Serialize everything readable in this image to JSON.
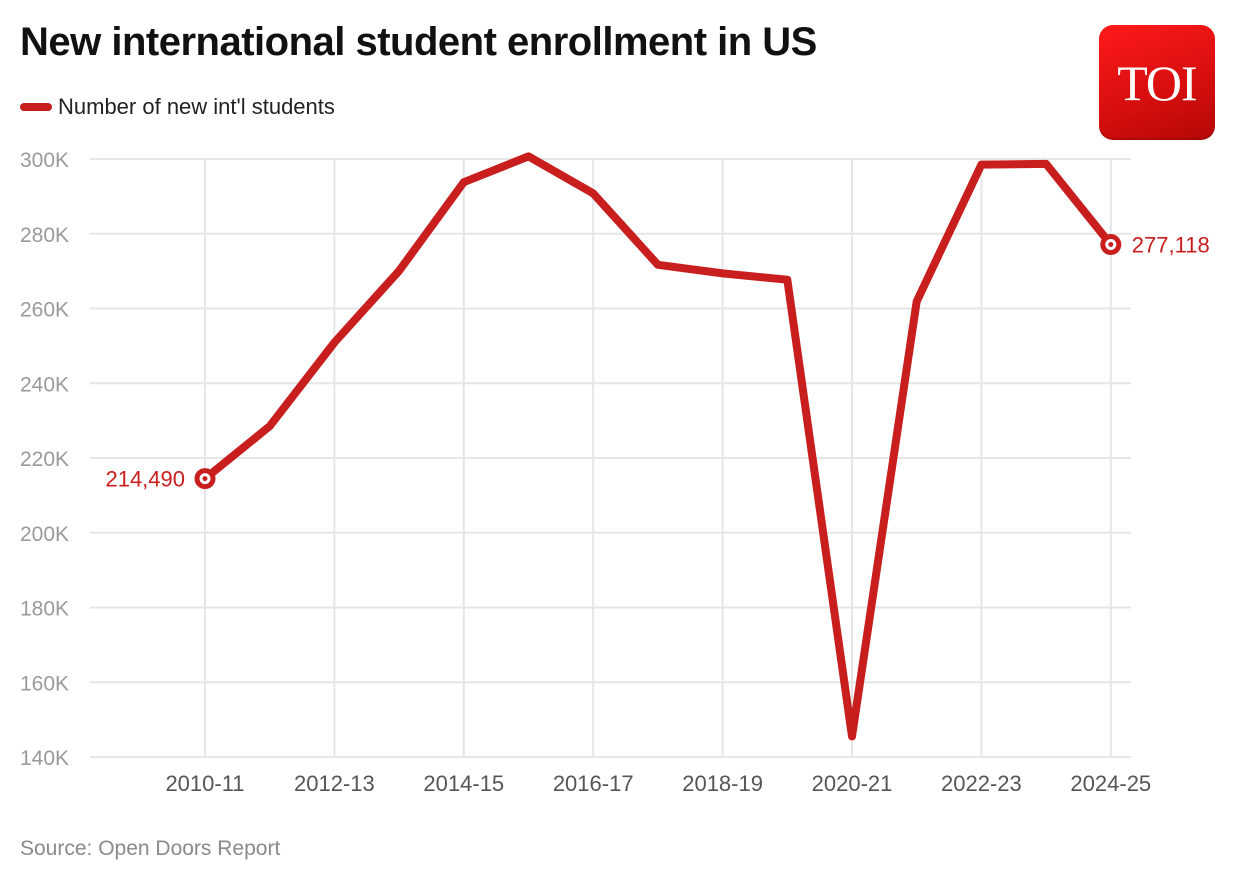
{
  "header": {
    "title": "New international student enrollment in US"
  },
  "logo": {
    "text": "TOI",
    "color": "#e8100f"
  },
  "source": "Source: Open Doors Report",
  "colors": {
    "line": "#c81e1e",
    "grid": "#e6e6e6",
    "tick": "#9a9a9a"
  },
  "chart_data": {
    "type": "line",
    "title": "New international student enrollment in US",
    "xlabel": "",
    "ylabel": "",
    "x": [
      "2010-11",
      "2011-12",
      "2012-13",
      "2013-14",
      "2014-15",
      "2015-16",
      "2016-17",
      "2017-18",
      "2018-19",
      "2019-20",
      "2020-21",
      "2021-22",
      "2022-23",
      "2023-24",
      "2024-25"
    ],
    "x_tick_labels": [
      "2010-11",
      "2012-13",
      "2014-15",
      "2016-17",
      "2018-19",
      "2020-21",
      "2022-23",
      "2024-25"
    ],
    "y_tick_labels": [
      "140K",
      "160K",
      "180K",
      "200K",
      "220K",
      "240K",
      "260K",
      "280K",
      "300K"
    ],
    "ylim": [
      140000,
      300000
    ],
    "grid": true,
    "legend_position": "top-left",
    "series": [
      {
        "name": "Number of new int'l students",
        "values": [
          214490,
          228500,
          250900,
          270100,
          293800,
          300700,
          290800,
          271700,
          269400,
          267700,
          145500,
          261900,
          298500,
          298700,
          277118
        ]
      }
    ],
    "annotations": [
      {
        "x": "2010-11",
        "text": "214,490"
      },
      {
        "x": "2024-25",
        "text": "277,118"
      }
    ]
  }
}
